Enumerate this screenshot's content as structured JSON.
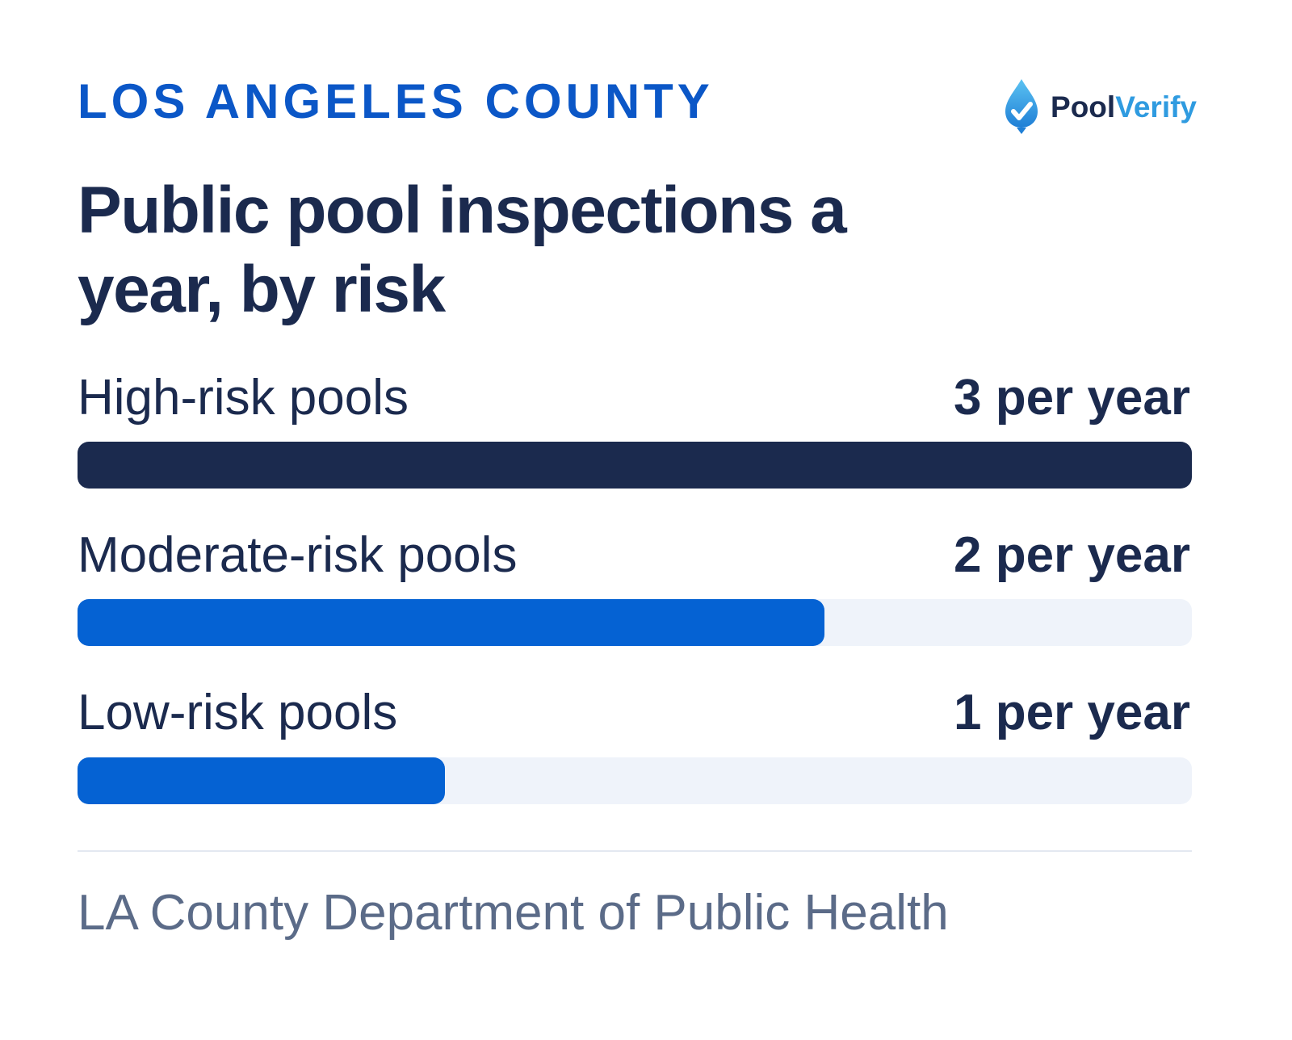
{
  "header": {
    "eyebrow": "LOS ANGELES COUNTY",
    "logo_part1": "Pool",
    "logo_part2": "Verify",
    "logo_icon": "water-drop-check-icon"
  },
  "footer": {
    "source": "LA County Department of Public Health"
  },
  "colors": {
    "high": "#1b2a4e",
    "moderate": "#0562d3",
    "low": "#0562d3",
    "track": "#eff3fa",
    "accent": "#0b57c7",
    "logo_blue": "#2f9be0"
  },
  "chart_data": {
    "type": "bar",
    "orientation": "horizontal",
    "title": "Public pool inspections a year, by risk",
    "categories": [
      "High-risk pools",
      "Moderate-risk pools",
      "Low-risk pools"
    ],
    "values": [
      3,
      2,
      1
    ],
    "value_labels": [
      "3 per year",
      "2 per year",
      "1 per year"
    ],
    "xlim": [
      0,
      3
    ],
    "grid": false,
    "legend": "none"
  }
}
